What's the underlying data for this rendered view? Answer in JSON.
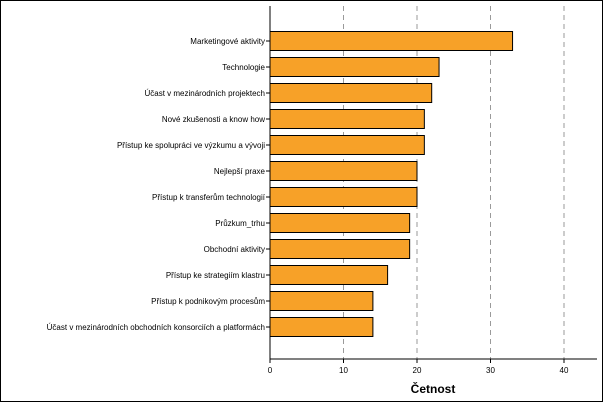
{
  "chart_data": {
    "type": "bar",
    "orientation": "horizontal",
    "xlabel": "Četnost",
    "xlim": [
      0,
      45
    ],
    "xticks": [
      0,
      10,
      20,
      30,
      40
    ],
    "grid": "vertical dashed",
    "bar_color": "#F7A128",
    "categories": [
      "Marketingové aktivity",
      "Technologie",
      "Účast v mezinárodních projektech",
      "Nové zkušenosti a know  how",
      "Přístup ke spolupráci ve výzkumu a vývoji",
      "Nejlepší praxe",
      "Přístup k transferům technologií",
      "Průzkum_trhu",
      "Obchodní aktivity",
      "Přístup ke strategiím klastru",
      "Přístup k podnikovým procesům",
      "Účast v mezinárodních obchodních konsorciích a platformách"
    ],
    "values": [
      33,
      23,
      22,
      21,
      21,
      20,
      20,
      19,
      19,
      16,
      14,
      14
    ]
  }
}
